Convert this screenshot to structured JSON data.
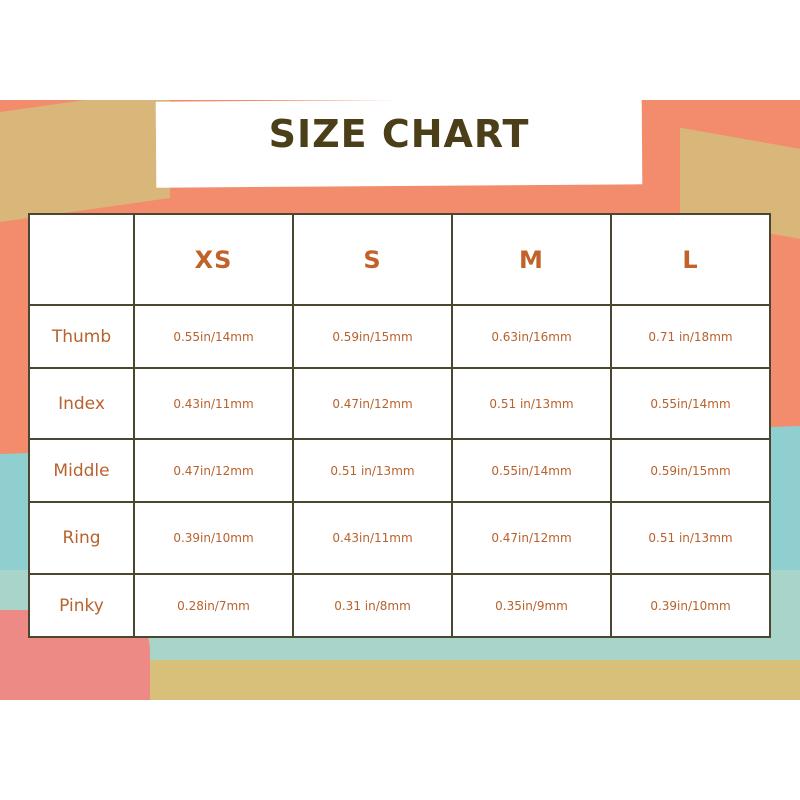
{
  "title": "SIZE CHART",
  "colors": {
    "orange": "#f28c6c",
    "teal": "#8fcfcf",
    "sand": "#d9c07a",
    "pink": "#ee8a86",
    "text": "#b8622e",
    "title": "#4a3f18",
    "border": "#4a4630"
  },
  "table": {
    "columns": [
      "",
      "XS",
      "S",
      "M",
      "L"
    ],
    "rows": [
      {
        "label": "Thumb",
        "values": [
          "0.55in/14mm",
          "0.59in/15mm",
          "0.63in/16mm",
          "0.71 in/18mm"
        ]
      },
      {
        "label": "Index",
        "values": [
          "0.43in/11mm",
          "0.47in/12mm",
          "0.51 in/13mm",
          "0.55in/14mm"
        ]
      },
      {
        "label": "Middle",
        "values": [
          "0.47in/12mm",
          "0.51 in/13mm",
          "0.55in/14mm",
          "0.59in/15mm"
        ]
      },
      {
        "label": "Ring",
        "values": [
          "0.39in/10mm",
          "0.43in/11mm",
          "0.47in/12mm",
          "0.51 in/13mm"
        ]
      },
      {
        "label": "Pinky",
        "values": [
          "0.28in/7mm",
          "0.31 in/8mm",
          "0.35in/9mm",
          "0.39in/10mm"
        ]
      }
    ]
  }
}
